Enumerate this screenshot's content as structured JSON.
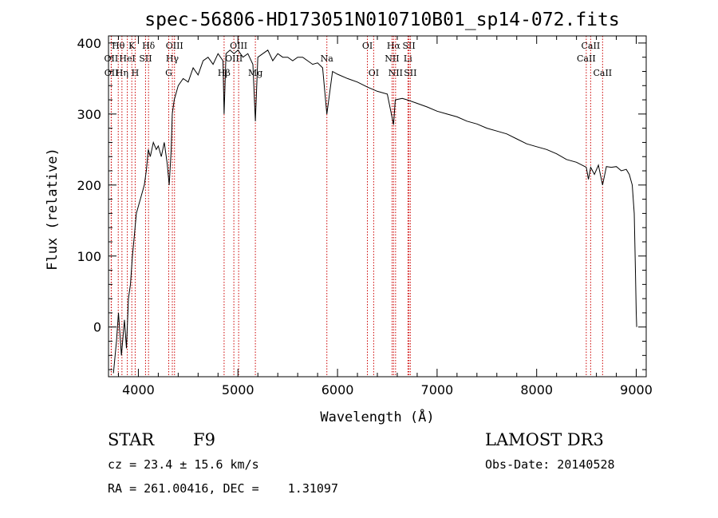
{
  "chart_data": {
    "type": "line",
    "title": "spec-56806-HD173051N010710B01_sp14-072.fits",
    "xlabel": "Wavelength (Å)",
    "ylabel": "Flux (relative)",
    "xlim": [
      3700,
      9100
    ],
    "ylim": [
      -70,
      410
    ],
    "xticks": [
      4000,
      5000,
      6000,
      7000,
      8000,
      9000
    ],
    "yticks": [
      0,
      100,
      200,
      300,
      400
    ],
    "series": [
      {
        "name": "flux",
        "x": [
          3750,
          3780,
          3800,
          3830,
          3860,
          3880,
          3900,
          3920,
          3940,
          3960,
          3980,
          4000,
          4020,
          4040,
          4060,
          4080,
          4100,
          4120,
          4150,
          4180,
          4200,
          4230,
          4260,
          4290,
          4310,
          4330,
          4340,
          4360,
          4400,
          4450,
          4500,
          4550,
          4600,
          4650,
          4700,
          4750,
          4800,
          4850,
          4861,
          4880,
          4920,
          4960,
          5000,
          5050,
          5100,
          5150,
          5175,
          5200,
          5250,
          5300,
          5350,
          5400,
          5450,
          5500,
          5550,
          5600,
          5650,
          5700,
          5750,
          5800,
          5850,
          5893,
          5950,
          6000,
          6100,
          6200,
          6300,
          6400,
          6500,
          6563,
          6580,
          6650,
          6700,
          6800,
          6900,
          7000,
          7100,
          7200,
          7300,
          7400,
          7500,
          7600,
          7700,
          7800,
          7900,
          8000,
          8100,
          8200,
          8300,
          8400,
          8498,
          8520,
          8542,
          8580,
          8620,
          8662,
          8700,
          8750,
          8800,
          8850,
          8900,
          8930,
          8960,
          8980,
          8990,
          9000,
          9005
        ],
        "y": [
          -65,
          -20,
          20,
          -40,
          10,
          -30,
          40,
          60,
          100,
          130,
          160,
          170,
          180,
          190,
          200,
          220,
          250,
          240,
          260,
          250,
          255,
          240,
          260,
          230,
          200,
          250,
          300,
          320,
          340,
          350,
          345,
          365,
          355,
          375,
          380,
          370,
          385,
          375,
          300,
          385,
          390,
          385,
          390,
          380,
          385,
          370,
          290,
          380,
          385,
          390,
          375,
          385,
          380,
          380,
          375,
          380,
          380,
          375,
          370,
          372,
          365,
          300,
          360,
          356,
          350,
          345,
          338,
          332,
          328,
          285,
          320,
          322,
          320,
          315,
          310,
          304,
          300,
          296,
          290,
          286,
          280,
          276,
          272,
          265,
          258,
          254,
          250,
          244,
          236,
          232,
          225,
          208,
          225,
          215,
          228,
          200,
          226,
          225,
          226,
          220,
          222,
          215,
          200,
          160,
          90,
          20,
          0
        ]
      }
    ],
    "line_markers": [
      {
        "label": "Hθ",
        "x": 3798,
        "row": 1
      },
      {
        "label": "OII",
        "x": 3727,
        "row": 2
      },
      {
        "label": "OII",
        "x": 3729,
        "row": 3
      },
      {
        "label": "HeI",
        "x": 3889,
        "row": 2
      },
      {
        "label": "Hη",
        "x": 3835,
        "row": 3
      },
      {
        "label": "K",
        "x": 3934,
        "row": 1
      },
      {
        "label": "H",
        "x": 3968,
        "row": 3
      },
      {
        "label": "SII",
        "x": 4072,
        "row": 2
      },
      {
        "label": "Hδ",
        "x": 4102,
        "row": 1
      },
      {
        "label": "OIII",
        "x": 4363,
        "row": 1
      },
      {
        "label": "Hγ",
        "x": 4341,
        "row": 2
      },
      {
        "label": "G",
        "x": 4305,
        "row": 3
      },
      {
        "label": "OIII",
        "x": 5007,
        "row": 1
      },
      {
        "label": "OIII",
        "x": 4959,
        "row": 2
      },
      {
        "label": "Hβ",
        "x": 4861,
        "row": 3
      },
      {
        "label": "Mg",
        "x": 5175,
        "row": 3
      },
      {
        "label": "Na",
        "x": 5893,
        "row": 2
      },
      {
        "label": "OI",
        "x": 6300,
        "row": 1
      },
      {
        "label": "OI",
        "x": 6363,
        "row": 3
      },
      {
        "label": "Hα",
        "x": 6563,
        "row": 1
      },
      {
        "label": "NII",
        "x": 6548,
        "row": 2
      },
      {
        "label": "NII",
        "x": 6583,
        "row": 3
      },
      {
        "label": "SII",
        "x": 6717,
        "row": 1
      },
      {
        "label": "Li",
        "x": 6707,
        "row": 2
      },
      {
        "label": "SII",
        "x": 6731,
        "row": 3
      },
      {
        "label": "CaII",
        "x": 8542,
        "row": 1
      },
      {
        "label": "CaII",
        "x": 8498,
        "row": 2
      },
      {
        "label": "CaII",
        "x": 8662,
        "row": 3
      }
    ]
  },
  "info": {
    "class_label": "STAR",
    "subclass": "F9",
    "survey": "LAMOST DR3",
    "cz": "cz = 23.4 ± 15.6 km/s",
    "obs_date": "Obs-Date: 20140528",
    "coords": "RA = 261.00416, DEC =    1.31097"
  },
  "colors": {
    "line": "#000000",
    "marker": "#cc0000",
    "background": "#ffffff"
  }
}
